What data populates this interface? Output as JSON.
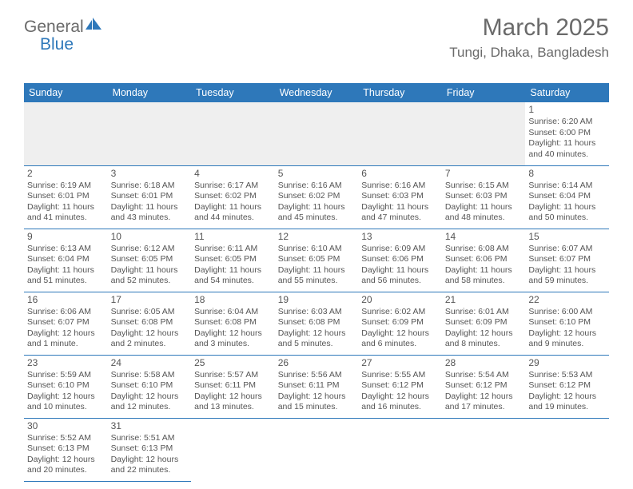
{
  "logo": {
    "text1": "General",
    "text2": "Blue"
  },
  "header": {
    "month": "March 2025",
    "location": "Tungi, Dhaka, Bangladesh"
  },
  "colors": {
    "header_bg": "#2e78ba",
    "header_text": "#ffffff",
    "blank_bg": "#efefef",
    "body_text": "#555555",
    "logo_gray": "#6a6a6a",
    "logo_blue": "#2e78ba",
    "page_bg": "#ffffff"
  },
  "typography": {
    "title_size": 30,
    "location_size": 17,
    "dayhead_size": 12.5,
    "cell_size": 10.5
  },
  "dayHeaders": [
    "Sunday",
    "Monday",
    "Tuesday",
    "Wednesday",
    "Thursday",
    "Friday",
    "Saturday"
  ],
  "weeks": [
    [
      null,
      null,
      null,
      null,
      null,
      null,
      {
        "n": "1",
        "sr": "6:20 AM",
        "ss": "6:00 PM",
        "dl": "11 hours and 40 minutes."
      }
    ],
    [
      {
        "n": "2",
        "sr": "6:19 AM",
        "ss": "6:01 PM",
        "dl": "11 hours and 41 minutes."
      },
      {
        "n": "3",
        "sr": "6:18 AM",
        "ss": "6:01 PM",
        "dl": "11 hours and 43 minutes."
      },
      {
        "n": "4",
        "sr": "6:17 AM",
        "ss": "6:02 PM",
        "dl": "11 hours and 44 minutes."
      },
      {
        "n": "5",
        "sr": "6:16 AM",
        "ss": "6:02 PM",
        "dl": "11 hours and 45 minutes."
      },
      {
        "n": "6",
        "sr": "6:16 AM",
        "ss": "6:03 PM",
        "dl": "11 hours and 47 minutes."
      },
      {
        "n": "7",
        "sr": "6:15 AM",
        "ss": "6:03 PM",
        "dl": "11 hours and 48 minutes."
      },
      {
        "n": "8",
        "sr": "6:14 AM",
        "ss": "6:04 PM",
        "dl": "11 hours and 50 minutes."
      }
    ],
    [
      {
        "n": "9",
        "sr": "6:13 AM",
        "ss": "6:04 PM",
        "dl": "11 hours and 51 minutes."
      },
      {
        "n": "10",
        "sr": "6:12 AM",
        "ss": "6:05 PM",
        "dl": "11 hours and 52 minutes."
      },
      {
        "n": "11",
        "sr": "6:11 AM",
        "ss": "6:05 PM",
        "dl": "11 hours and 54 minutes."
      },
      {
        "n": "12",
        "sr": "6:10 AM",
        "ss": "6:05 PM",
        "dl": "11 hours and 55 minutes."
      },
      {
        "n": "13",
        "sr": "6:09 AM",
        "ss": "6:06 PM",
        "dl": "11 hours and 56 minutes."
      },
      {
        "n": "14",
        "sr": "6:08 AM",
        "ss": "6:06 PM",
        "dl": "11 hours and 58 minutes."
      },
      {
        "n": "15",
        "sr": "6:07 AM",
        "ss": "6:07 PM",
        "dl": "11 hours and 59 minutes."
      }
    ],
    [
      {
        "n": "16",
        "sr": "6:06 AM",
        "ss": "6:07 PM",
        "dl": "12 hours and 1 minute."
      },
      {
        "n": "17",
        "sr": "6:05 AM",
        "ss": "6:08 PM",
        "dl": "12 hours and 2 minutes."
      },
      {
        "n": "18",
        "sr": "6:04 AM",
        "ss": "6:08 PM",
        "dl": "12 hours and 3 minutes."
      },
      {
        "n": "19",
        "sr": "6:03 AM",
        "ss": "6:08 PM",
        "dl": "12 hours and 5 minutes."
      },
      {
        "n": "20",
        "sr": "6:02 AM",
        "ss": "6:09 PM",
        "dl": "12 hours and 6 minutes."
      },
      {
        "n": "21",
        "sr": "6:01 AM",
        "ss": "6:09 PM",
        "dl": "12 hours and 8 minutes."
      },
      {
        "n": "22",
        "sr": "6:00 AM",
        "ss": "6:10 PM",
        "dl": "12 hours and 9 minutes."
      }
    ],
    [
      {
        "n": "23",
        "sr": "5:59 AM",
        "ss": "6:10 PM",
        "dl": "12 hours and 10 minutes."
      },
      {
        "n": "24",
        "sr": "5:58 AM",
        "ss": "6:10 PM",
        "dl": "12 hours and 12 minutes."
      },
      {
        "n": "25",
        "sr": "5:57 AM",
        "ss": "6:11 PM",
        "dl": "12 hours and 13 minutes."
      },
      {
        "n": "26",
        "sr": "5:56 AM",
        "ss": "6:11 PM",
        "dl": "12 hours and 15 minutes."
      },
      {
        "n": "27",
        "sr": "5:55 AM",
        "ss": "6:12 PM",
        "dl": "12 hours and 16 minutes."
      },
      {
        "n": "28",
        "sr": "5:54 AM",
        "ss": "6:12 PM",
        "dl": "12 hours and 17 minutes."
      },
      {
        "n": "29",
        "sr": "5:53 AM",
        "ss": "6:12 PM",
        "dl": "12 hours and 19 minutes."
      }
    ],
    [
      {
        "n": "30",
        "sr": "5:52 AM",
        "ss": "6:13 PM",
        "dl": "12 hours and 20 minutes."
      },
      {
        "n": "31",
        "sr": "5:51 AM",
        "ss": "6:13 PM",
        "dl": "12 hours and 22 minutes."
      },
      null,
      null,
      null,
      null,
      null
    ]
  ],
  "labels": {
    "sunrise": "Sunrise: ",
    "sunset": "Sunset: ",
    "daylight": "Daylight: "
  }
}
